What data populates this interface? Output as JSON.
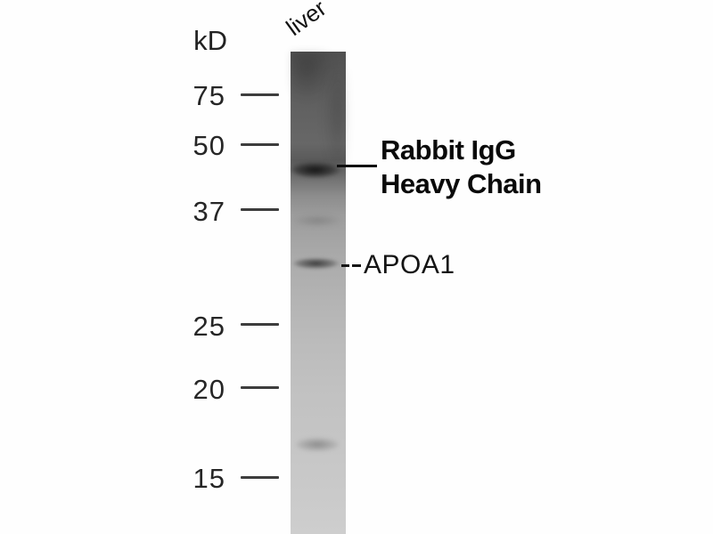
{
  "figure": {
    "type": "western-blot",
    "unit_label": "kD",
    "lane_label": "liver",
    "markers": [
      {
        "label": "75"
      },
      {
        "label": "50"
      },
      {
        "label": "37"
      },
      {
        "label": "25"
      },
      {
        "label": "20"
      },
      {
        "label": "15"
      }
    ],
    "annotations": {
      "heavy_chain": {
        "line1": "Rabbit IgG",
        "line2": "Heavy Chain"
      },
      "apoa1": {
        "label": "APOA1"
      }
    },
    "bands": [
      {
        "name": "rabbit-igg-heavy-chain",
        "position": "between 50 and 37 markers",
        "intensity": "strong"
      },
      {
        "name": "apoa1",
        "position": "between 37 and 25 markers",
        "intensity": "medium"
      },
      {
        "name": "unlabeled-low-mw",
        "position": "between 20 and 15 markers",
        "intensity": "faint"
      }
    ],
    "colors": {
      "background": "#fefefe",
      "text": "#141414",
      "tick": "#3d3d3d",
      "lane_top": "#4f4f4f",
      "lane_bottom": "#cecece",
      "band_dark": "#0c0c0c"
    }
  }
}
